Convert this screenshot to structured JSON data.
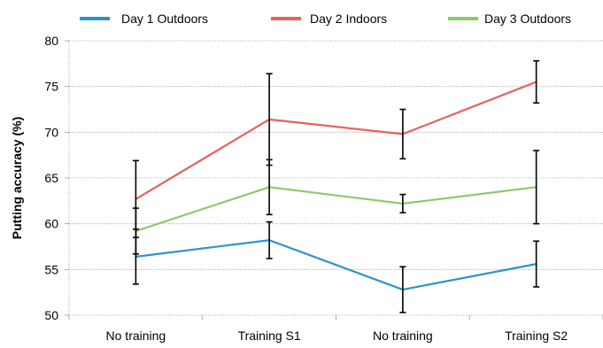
{
  "chart_data": {
    "type": "line",
    "title": "",
    "xlabel": "",
    "ylabel": "Putting accuracy (%)",
    "categories": [
      "No training",
      "Training S1",
      "No training",
      "Training S2"
    ],
    "ylim": [
      50,
      80
    ],
    "yticks": [
      50,
      55,
      60,
      65,
      70,
      75,
      80
    ],
    "grid": true,
    "legend_position": "top",
    "series": [
      {
        "name": "Day 1 Outdoors",
        "color": "#2b95c9",
        "values": [
          56.4,
          58.2,
          52.8,
          55.6
        ],
        "errors": [
          3.0,
          2.0,
          2.5,
          2.5
        ]
      },
      {
        "name": "Day 2 Indoors",
        "color": "#e8605c",
        "values": [
          62.7,
          71.4,
          69.8,
          75.5
        ],
        "errors": [
          4.2,
          5.0,
          2.7,
          2.3
        ]
      },
      {
        "name": "Day 3 Outdoors",
        "color": "#8dc96c",
        "values": [
          59.2,
          64.0,
          62.2,
          64.0
        ],
        "errors": [
          2.5,
          3.0,
          1.0,
          4.0
        ]
      }
    ]
  }
}
